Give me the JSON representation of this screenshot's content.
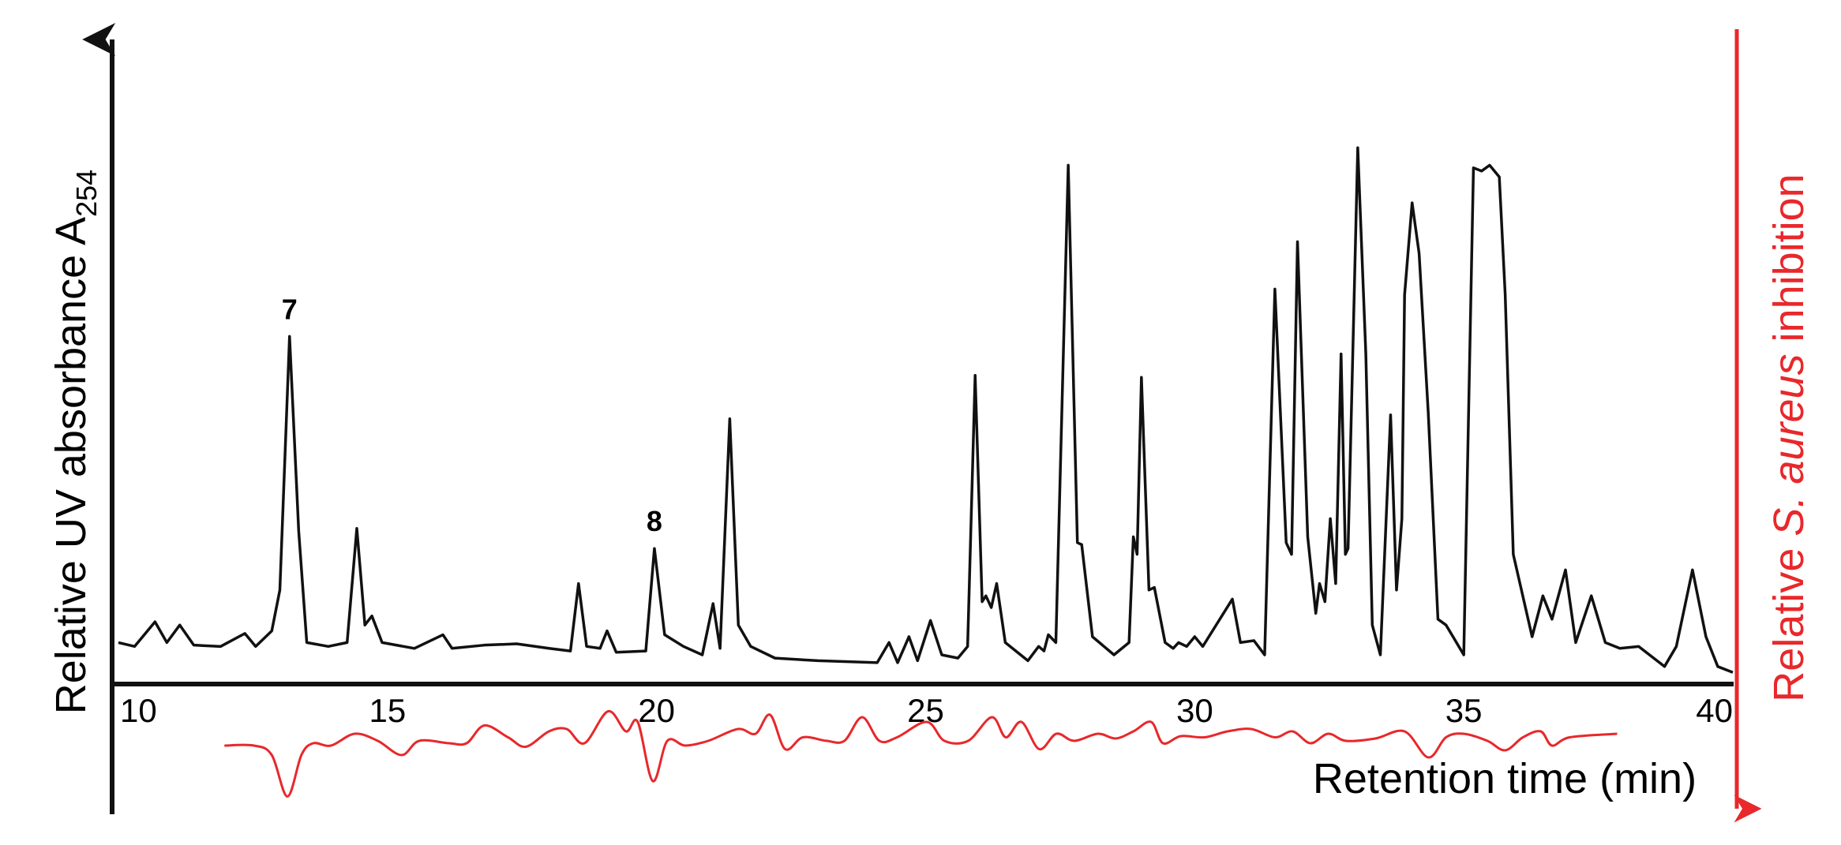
{
  "chart_data": {
    "type": "line",
    "xlabel": "Retention time (min)",
    "ylabel": "Relative UV absorbance  A",
    "ylabel_subscript": "254",
    "y2label": [
      "Relative ",
      "S. aureus",
      " inhibition"
    ],
    "xlim": [
      10,
      40
    ],
    "xticks": [
      10,
      15,
      20,
      25,
      30,
      35,
      40
    ],
    "ylim": [
      0,
      100
    ],
    "y2lim": [
      -10,
      10
    ],
    "y2_inverted": true,
    "peak_labels": [
      {
        "label": "7",
        "x": 13.18
      },
      {
        "label": "8",
        "x": 19.96
      }
    ],
    "series": [
      {
        "color": "#111111",
        "x": [
          10.0,
          10.3,
          10.68,
          10.9,
          11.14,
          11.4,
          11.9,
          12.35,
          12.55,
          12.85,
          13.0,
          13.18,
          13.35,
          13.5,
          13.9,
          14.25,
          14.43,
          14.58,
          14.71,
          14.9,
          15.5,
          16.03,
          16.2,
          16.8,
          17.4,
          18.0,
          18.4,
          18.55,
          18.7,
          18.95,
          19.08,
          19.25,
          19.8,
          19.96,
          20.15,
          20.5,
          20.85,
          21.05,
          21.18,
          21.36,
          21.52,
          21.75,
          22.2,
          23.0,
          24.1,
          24.32,
          24.48,
          24.69,
          24.85,
          25.09,
          25.3,
          25.6,
          25.78,
          25.92,
          26.05,
          26.12,
          26.22,
          26.32,
          26.48,
          26.9,
          27.1,
          27.2,
          27.28,
          27.42,
          27.65,
          27.82,
          27.9,
          28.1,
          28.5,
          28.78,
          28.86,
          28.93,
          29.01,
          29.15,
          29.25,
          29.45,
          29.6,
          29.7,
          29.85,
          30.0,
          30.15,
          30.7,
          30.85,
          31.1,
          31.3,
          31.49,
          31.7,
          31.8,
          31.91,
          32.1,
          32.25,
          32.32,
          32.42,
          32.52,
          32.62,
          32.72,
          32.8,
          32.85,
          33.03,
          33.18,
          33.3,
          33.45,
          33.64,
          33.75,
          33.85,
          33.9,
          34.04,
          34.17,
          34.34,
          34.52,
          34.67,
          34.8,
          35.0,
          35.18,
          35.33,
          35.48,
          35.66,
          35.77,
          35.92,
          36.27,
          36.47,
          36.64,
          36.89,
          37.08,
          37.37,
          37.63,
          37.9,
          38.25,
          38.73,
          38.95,
          39.25,
          39.5,
          39.72,
          40.0
        ],
        "values": [
          6.4,
          5.8,
          9.6,
          6.4,
          9.1,
          6.0,
          5.8,
          7.8,
          5.8,
          8.2,
          14.5,
          53.6,
          23.6,
          6.4,
          5.8,
          6.4,
          24.0,
          9.1,
          10.5,
          6.4,
          5.5,
          7.6,
          5.5,
          6.0,
          6.2,
          5.5,
          5.1,
          15.5,
          5.8,
          5.5,
          8.2,
          4.9,
          5.1,
          20.9,
          7.6,
          5.8,
          4.5,
          12.4,
          5.5,
          40.9,
          9.1,
          5.8,
          4.0,
          3.6,
          3.3,
          6.4,
          3.3,
          7.3,
          3.6,
          9.8,
          4.5,
          4.0,
          5.8,
          47.6,
          12.7,
          13.6,
          11.8,
          15.5,
          6.4,
          3.6,
          5.8,
          5.1,
          7.6,
          6.4,
          80.0,
          21.8,
          21.5,
          7.3,
          4.5,
          6.4,
          22.7,
          20.0,
          47.3,
          14.5,
          14.9,
          6.4,
          5.5,
          6.4,
          5.8,
          7.3,
          5.8,
          13.1,
          6.4,
          6.7,
          4.5,
          60.9,
          21.8,
          20.0,
          68.2,
          22.7,
          10.9,
          15.5,
          12.7,
          25.5,
          15.5,
          50.9,
          20.0,
          20.9,
          82.7,
          50.9,
          9.1,
          4.5,
          41.5,
          14.5,
          25.5,
          60.0,
          74.2,
          66.4,
          41.8,
          10.0,
          9.1,
          7.3,
          4.5,
          79.6,
          79.1,
          80.0,
          78.2,
          60.0,
          20.0,
          7.3,
          13.6,
          10.0,
          17.6,
          6.4,
          13.6,
          6.4,
          5.5,
          5.8,
          2.7,
          5.8,
          17.6,
          7.3,
          2.7,
          1.8
        ]
      },
      {
        "color": "#e8282b",
        "axis": "y2",
        "x": [
          11.97,
          12.52,
          12.85,
          13.14,
          13.4,
          13.62,
          13.95,
          14.39,
          14.82,
          15.26,
          15.59,
          16.14,
          16.47,
          16.8,
          17.24,
          17.57,
          18.0,
          18.33,
          18.66,
          19.1,
          19.43,
          19.65,
          19.93,
          20.2,
          20.53,
          20.96,
          21.51,
          21.84,
          22.11,
          22.39,
          22.72,
          23.16,
          23.49,
          23.82,
          24.14,
          24.47,
          25.02,
          25.35,
          25.79,
          26.23,
          26.49,
          26.78,
          27.11,
          27.43,
          27.76,
          28.2,
          28.53,
          28.86,
          29.19,
          29.41,
          29.74,
          30.18,
          30.61,
          31.05,
          31.49,
          31.82,
          32.15,
          32.48,
          32.81,
          33.36,
          33.9,
          34.34,
          34.67,
          35.0,
          35.44,
          35.77,
          36.1,
          36.43,
          36.64,
          36.97,
          37.85
        ],
        "values": [
          0.8,
          0.8,
          2.4,
          9.4,
          2.4,
          0.4,
          0.8,
          -1.2,
          0,
          2.4,
          0,
          0.4,
          0.4,
          -2.6,
          -0.6,
          1,
          -1.6,
          -2,
          0.4,
          -5,
          -1.6,
          -3.2,
          6.8,
          0,
          0.8,
          0,
          -2,
          -1.2,
          -4.4,
          1.4,
          -0.6,
          0,
          0,
          -4,
          0,
          -0.6,
          -3.2,
          0,
          0,
          -4,
          -0.6,
          -3.2,
          1.4,
          -1.2,
          0,
          -1.2,
          -0.4,
          -1.6,
          -3.2,
          0.4,
          -0.8,
          -0.6,
          -1.6,
          -2,
          -0.6,
          -1.6,
          0.4,
          -1.2,
          0,
          -0.4,
          -1.6,
          2.8,
          -0.6,
          -1.2,
          0,
          1.6,
          -0.6,
          -1.6,
          0.8,
          -0.6,
          -1.2
        ]
      }
    ]
  }
}
